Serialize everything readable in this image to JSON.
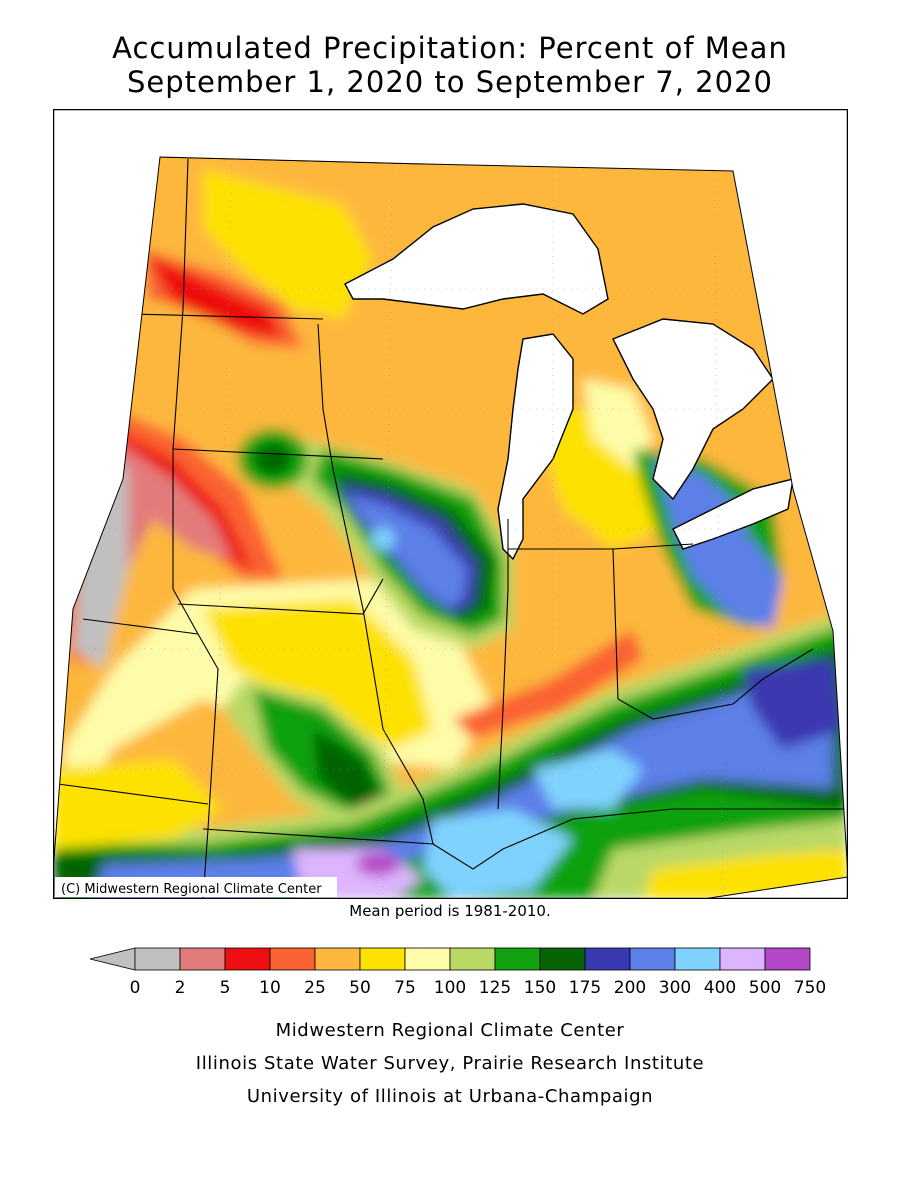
{
  "title_line1": "Accumulated Precipitation: Percent of Mean",
  "title_line2": "September 1, 2020 to September 7, 2020",
  "map_copyright": "(C) Midwestern Regional Climate Center",
  "mean_period": "Mean period is 1981-2010.",
  "legend": {
    "ticks": [
      "0",
      "2",
      "5",
      "10",
      "25",
      "50",
      "75",
      "100",
      "125",
      "150",
      "175",
      "200",
      "300",
      "400",
      "500",
      "750"
    ],
    "colors": [
      "#c0c0c0",
      "#e27c7a",
      "#ee1010",
      "#fa6232",
      "#fdb73e",
      "#fde100",
      "#fefca8",
      "#b9d866",
      "#11a111",
      "#056305",
      "#3a38b0",
      "#5c7fe8",
      "#7fd2fe",
      "#dcb5fe",
      "#b548c8"
    ]
  },
  "credits": [
    "Midwestern Regional Climate Center",
    "Illinois State Water Survey, Prairie Research Institute",
    "University of Illinois at Urbana-Champaign"
  ]
}
